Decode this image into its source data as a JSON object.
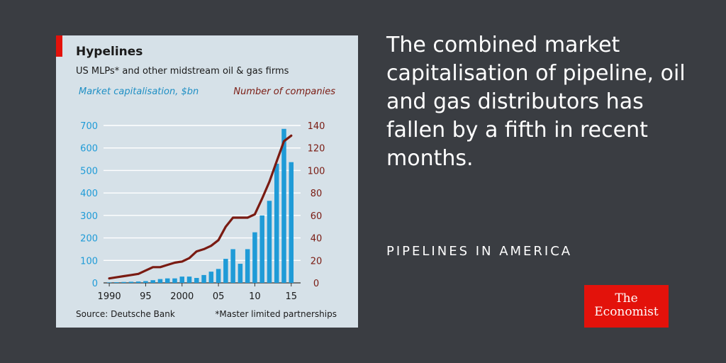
{
  "chart_data": {
    "type": "bar+line",
    "title": "Hypelines",
    "subtitle": "US MLPs* and other midstream oil & gas firms",
    "left_axis_label": "Market capitalisation, $bn",
    "right_axis_label": "Number of companies",
    "left_ylim": [
      0,
      700
    ],
    "right_ylim": [
      0,
      140
    ],
    "left_ticks": [
      0,
      100,
      200,
      300,
      400,
      500,
      600,
      700
    ],
    "right_ticks": [
      0,
      20,
      40,
      60,
      80,
      100,
      120,
      140
    ],
    "x_ticks": [
      {
        "year": 1990,
        "label": "1990"
      },
      {
        "year": 1995,
        "label": "95"
      },
      {
        "year": 2000,
        "label": "2000"
      },
      {
        "year": 2005,
        "label": "05"
      },
      {
        "year": 2010,
        "label": "10"
      },
      {
        "year": 2015,
        "label": "15"
      }
    ],
    "x": [
      1990,
      1991,
      1992,
      1993,
      1994,
      1995,
      1996,
      1997,
      1998,
      1999,
      2000,
      2001,
      2002,
      2003,
      2004,
      2005,
      2006,
      2007,
      2008,
      2009,
      2010,
      2011,
      2012,
      2013,
      2014,
      2015
    ],
    "series": [
      {
        "name": "Market capitalisation, $bn",
        "kind": "bar",
        "axis": "left",
        "color": "#1f9bd7",
        "values": [
          2,
          3,
          4,
          5,
          6,
          8,
          12,
          17,
          20,
          20,
          28,
          28,
          22,
          35,
          50,
          62,
          107,
          150,
          85,
          150,
          225,
          300,
          365,
          530,
          685,
          537
        ]
      },
      {
        "name": "Number of companies",
        "kind": "line",
        "axis": "right",
        "color": "#7a1b12",
        "values": [
          4,
          5,
          6,
          7,
          8,
          11,
          14,
          14,
          16,
          18,
          19,
          22,
          28,
          30,
          33,
          38,
          50,
          58,
          58,
          58,
          61,
          75,
          90,
          108,
          126,
          131
        ]
      }
    ],
    "grid": true,
    "source": "Source: Deutsche Bank",
    "note": "*Master limited partnerships"
  },
  "headline": "The combined market capitalisation of pipeline, oil and gas distributors has fallen by a fifth in recent months.",
  "kicker": "PIPELINES IN AMERICA",
  "logo": {
    "line1": "The",
    "line2": "Economist"
  },
  "colors": {
    "background": "#3a3d42",
    "card": "#d6e1e8",
    "accent": "#e3120b",
    "bar": "#1f9bd7",
    "line": "#7a1b12"
  }
}
